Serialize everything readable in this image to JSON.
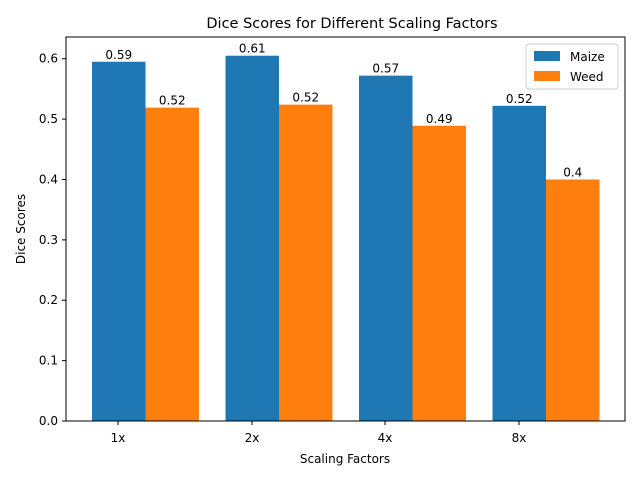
{
  "chart_data": {
    "type": "bar",
    "title": "Dice Scores for Different Scaling Factors",
    "xlabel": "Scaling Factors",
    "ylabel": "Dice Scores",
    "categories": [
      "1x",
      "2x",
      "4x",
      "8x"
    ],
    "series": [
      {
        "name": "Maize",
        "color": "#1f77b4",
        "values": [
          0.595,
          0.605,
          0.572,
          0.522
        ],
        "labels": [
          "0.59",
          "0.61",
          "0.57",
          "0.52"
        ]
      },
      {
        "name": "Weed",
        "color": "#ff7f0e",
        "values": [
          0.519,
          0.524,
          0.489,
          0.4
        ],
        "labels": [
          "0.52",
          "0.52",
          "0.49",
          "0.4"
        ]
      }
    ],
    "ylim": [
      0,
      0.636
    ],
    "yticks": [
      0.0,
      0.1,
      0.2,
      0.3,
      0.4,
      0.5,
      0.6
    ],
    "ytick_labels": [
      "0.0",
      "0.1",
      "0.2",
      "0.3",
      "0.4",
      "0.5",
      "0.6"
    ],
    "grid": false,
    "legend_position": "top-right"
  }
}
